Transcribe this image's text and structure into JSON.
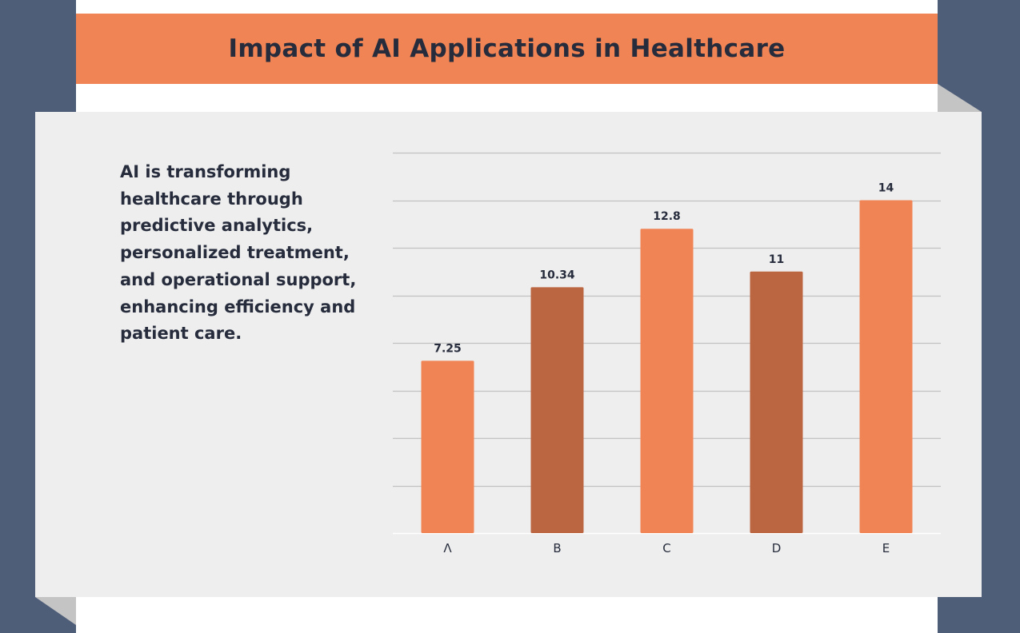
{
  "title": "Impact of AI Applications in Healthcare",
  "description": "AI is transforming healthcare through predictive analytics, personalized treatment, and operational support, enhancing efficiency and patient care.",
  "colors": {
    "background": "#4e5d78",
    "sheet": "#ffffff",
    "accent": "#f08455",
    "accent_dark": "#bc6641",
    "panel": "#eeeeee",
    "fold": "#c4c4c4",
    "text": "#262c3c",
    "grid": "#c2c2c2"
  },
  "chart_data": {
    "type": "bar",
    "title": "",
    "xlabel": "",
    "ylabel": "",
    "categories": [
      "Λ",
      "B",
      "C",
      "D",
      "E"
    ],
    "values": [
      7.25,
      10.34,
      12.8,
      11,
      14
    ],
    "value_labels": [
      "7.25",
      "10.34",
      "12.8",
      "11",
      "14"
    ],
    "bar_colors": [
      "#f08455",
      "#bc6641",
      "#f08455",
      "#bc6641",
      "#f08455"
    ],
    "ylim": [
      0,
      16
    ],
    "y_gridlines": [
      2,
      4,
      6,
      8,
      10,
      12,
      14,
      16
    ],
    "grid": true,
    "show_y_axis_labels": false,
    "legend": "none"
  }
}
